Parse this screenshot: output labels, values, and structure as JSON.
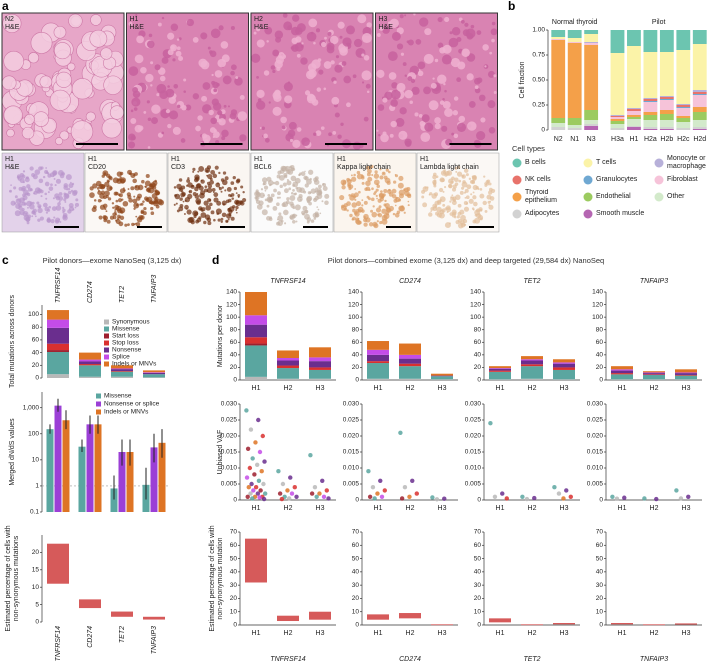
{
  "panel_labels": [
    "a",
    "b",
    "c",
    "d"
  ],
  "panel_a": {
    "top_images": [
      {
        "donor": "N2",
        "stain": "H&E"
      },
      {
        "donor": "H1",
        "stain": "H&E"
      },
      {
        "donor": "H2",
        "stain": "H&E"
      },
      {
        "donor": "H3",
        "stain": "H&E"
      }
    ],
    "bottom_images": [
      {
        "donor": "H1",
        "stain": "H&E"
      },
      {
        "donor": "H1",
        "stain": "CD20"
      },
      {
        "donor": "H1",
        "stain": "CD3"
      },
      {
        "donor": "H1",
        "stain": "BCL6"
      },
      {
        "donor": "H1",
        "stain": "Kappa light chain"
      },
      {
        "donor": "H1",
        "stain": "Lambda light chain"
      }
    ]
  },
  "chart_data": [
    {
      "type": "stacked_bar",
      "ylabel": "Cell fraction",
      "categories": [
        "N2",
        "N1",
        "N3",
        "H3a",
        "H1",
        "H2a",
        "H2b",
        "H2c",
        "H2d"
      ],
      "groups": [
        {
          "label": "Normal thyroid",
          "count": 3
        },
        {
          "label": "Pilot",
          "count": 6
        }
      ],
      "ylim": [
        0,
        1
      ],
      "yticks": [
        0,
        {
          "value": 0.25,
          "label": "0.25"
        },
        {
          "value": 0.5,
          "label": "0.50"
        },
        0.75,
        {
          "value": 1,
          "label": "1.00"
        }
      ],
      "legend_title": "Cell types",
      "series": [
        {
          "name": "B cells",
          "color": "#6cc5b0",
          "values": [
            0.07,
            0.08,
            0.04,
            0.23,
            0.16,
            0.22,
            0.22,
            0.2,
            0.14
          ]
        },
        {
          "name": "T cells",
          "color": "#fbf3a8",
          "values": [
            0.02,
            0.04,
            0.08,
            0.62,
            0.62,
            0.46,
            0.44,
            0.54,
            0.46
          ]
        },
        {
          "name": "Monocyte or macrophage",
          "color": "#b7b0d9",
          "values": [
            0,
            0,
            0.01,
            0.01,
            0.01,
            0.01,
            0.01,
            0.01,
            0.02
          ]
        },
        {
          "name": "NK cells",
          "color": "#e8736b",
          "values": [
            0,
            0,
            0,
            0.01,
            0.02,
            0.02,
            0.02,
            0.02,
            0.02
          ]
        },
        {
          "name": "Granulocytes",
          "color": "#6fa8d2",
          "values": [
            0,
            0,
            0,
            0,
            0,
            0.01,
            0.01,
            0.01,
            0.01
          ]
        },
        {
          "name": "Fibroblast",
          "color": "#f6c3d9",
          "values": [
            0.01,
            0.01,
            0.02,
            0.02,
            0.04,
            0.1,
            0.1,
            0.08,
            0.12
          ]
        },
        {
          "name": "Thyroid epithelium",
          "color": "#f4a049",
          "values": [
            0.78,
            0.75,
            0.65,
            0.02,
            0.02,
            0.03,
            0.04,
            0.02,
            0.05
          ]
        },
        {
          "name": "Endothelial",
          "color": "#9ccb60",
          "values": [
            0.05,
            0.07,
            0.1,
            0.03,
            0.02,
            0.05,
            0.06,
            0.04,
            0.08
          ]
        },
        {
          "name": "Other",
          "color": "#d3eacb",
          "values": [
            0.04,
            0.03,
            0.04,
            0.04,
            0.07,
            0.07,
            0.07,
            0.06,
            0.07
          ]
        },
        {
          "name": "Adipocytes",
          "color": "#d2d2d2",
          "values": [
            0.03,
            0.02,
            0.02,
            0.02,
            0.01,
            0.02,
            0.02,
            0.02,
            0.02
          ]
        },
        {
          "name": "Smooth muscle",
          "color": "#b566b2",
          "values": [
            0,
            0,
            0.04,
            0,
            0.03,
            0.01,
            0.01,
            0,
            0.01
          ]
        }
      ]
    },
    {
      "type": "stacked_bar",
      "title": "Pilot donors—exome NanoSeq (3,125 dx)",
      "ylabel": "Total mutations across donors",
      "categories": [
        "TNFRSF14",
        "CD274",
        "TET2",
        "TNFAIP3"
      ],
      "ylim": [
        0,
        115
      ],
      "yticks": [
        0,
        20,
        40,
        60,
        80,
        100
      ],
      "series": [
        {
          "name": "Synonymous",
          "color": "#b8b8b8",
          "values": [
            6,
            2,
            2,
            1
          ]
        },
        {
          "name": "Missense",
          "color": "#5aa6a0",
          "values": [
            35,
            18,
            8,
            5
          ]
        },
        {
          "name": "Start loss",
          "color": "#9e1f2e",
          "values": [
            3,
            0,
            0,
            0
          ]
        },
        {
          "name": "Stop loss",
          "color": "#d9302f",
          "values": [
            10,
            2,
            1,
            0
          ]
        },
        {
          "name": "Nonsense",
          "color": "#6a2e8e",
          "values": [
            25,
            4,
            3,
            2
          ]
        },
        {
          "name": "Splice",
          "color": "#c44ce8",
          "values": [
            13,
            3,
            1,
            1
          ]
        },
        {
          "name": "Indels or MNVs",
          "color": "#de7424",
          "values": [
            15,
            11,
            5,
            3
          ]
        }
      ]
    },
    {
      "type": "bar_error",
      "ylabel": "Merged dN/dS values",
      "log_scale": true,
      "ylim": [
        0.1,
        4000
      ],
      "yticks": [
        0.1,
        1,
        10,
        100,
        {
          "value": 1000,
          "label": "1,000"
        }
      ],
      "reference_line": 1,
      "series": [
        {
          "name": "Missense",
          "color": "#5aa6a0",
          "values": [
            150,
            32,
            0.8,
            1.1
          ],
          "lower": [
            100,
            20,
            0.3,
            0.3
          ],
          "upper": [
            230,
            60,
            2.5,
            5
          ]
        },
        {
          "name": "Nonsense or splice",
          "color": "#9b3fd6",
          "values": [
            1200,
            230,
            20,
            30
          ],
          "lower": [
            700,
            100,
            6,
            8
          ],
          "upper": [
            2200,
            500,
            60,
            100
          ]
        },
        {
          "name": "Indels or MNVs",
          "color": "#de7424",
          "values": [
            330,
            230,
            20,
            45
          ],
          "lower": [
            150,
            100,
            6,
            12
          ],
          "upper": [
            800,
            500,
            60,
            150
          ]
        }
      ]
    },
    {
      "type": "range_bar",
      "ylabel": [
        "Estimated percentage of cells with",
        "non-synonymous mutations"
      ],
      "categories": [
        "TNFRSF14",
        "CD274",
        "TET2",
        "TNFAIP3"
      ],
      "ylim": [
        0,
        25
      ],
      "yticks": [
        0,
        5,
        10,
        15,
        20
      ],
      "color": "#d65a5a",
      "low": [
        11,
        4,
        1.5,
        0.7
      ],
      "high": [
        22.5,
        6.5,
        3,
        1.5
      ]
    },
    {
      "type": "stacked_bar_facets",
      "title": "Pilot donors—combined exome (3,125 dx) and deep targeted (29,584 dx) NanoSeq",
      "ylabel": "Mutations per donor",
      "ylim": [
        0,
        140
      ],
      "yticks": [
        0,
        20,
        40,
        60,
        80,
        100,
        120,
        140
      ],
      "facets": [
        {
          "title": "TNFRSF14",
          "categories": [
            "H1",
            "H2",
            "H3"
          ],
          "values": [
            [
              5,
              50,
              3,
              10,
              20,
              15,
              37
            ],
            [
              2,
              17,
              0,
              4,
              8,
              4,
              12
            ],
            [
              2,
              14,
              0,
              4,
              10,
              6,
              16
            ]
          ]
        },
        {
          "title": "CD274",
          "categories": [
            "H1",
            "H2",
            "H3"
          ],
          "values": [
            [
              2,
              25,
              0,
              3,
              10,
              8,
              14
            ],
            [
              2,
              20,
              0,
              4,
              8,
              6,
              18
            ],
            [
              1,
              5,
              0,
              0,
              1,
              0,
              3
            ]
          ]
        },
        {
          "title": "TET2",
          "categories": [
            "H1",
            "H2",
            "H3"
          ],
          "values": [
            [
              1,
              12,
              0,
              2,
              3,
              1,
              3
            ],
            [
              2,
              20,
              0,
              3,
              6,
              2,
              5
            ],
            [
              1,
              15,
              0,
              4,
              6,
              2,
              5
            ]
          ]
        },
        {
          "title": "TNFAIP3",
          "categories": [
            "H1",
            "H2",
            "H3"
          ],
          "values": [
            [
              1,
              8,
              0,
              2,
              4,
              2,
              5
            ],
            [
              1,
              7,
              0,
              1,
              2,
              1,
              2
            ],
            [
              1,
              6,
              0,
              1,
              3,
              1,
              5
            ]
          ]
        }
      ]
    },
    {
      "type": "strip_facets",
      "ylabel": "Unbiased VAF",
      "ylim": [
        0,
        0.03
      ],
      "yticks": [
        0,
        0.005,
        {
          "value": 0.01,
          "label": "0.010"
        },
        0.015,
        {
          "value": 0.02,
          "label": "0.020"
        },
        0.025,
        {
          "value": 0.03,
          "label": "0.030"
        }
      ],
      "facets": [
        {
          "categories": [
            "H1",
            "H2",
            "H3"
          ],
          "values": [
            [
              0.028,
              0.025,
              0.022,
              0.02,
              0.018,
              0.016,
              0.015,
              0.013,
              0.012,
              0.011,
              0.01,
              0.009,
              0.008,
              0.007,
              0.006,
              0.005,
              0.005,
              0.004,
              0.004,
              0.003,
              0.003,
              0.002,
              0.002,
              0.002,
              0.001,
              0.001,
              0.001,
              0.0008,
              0.0005,
              0.0003
            ],
            [
              0.009,
              0.007,
              0.005,
              0.004,
              0.003,
              0.002,
              0.002,
              0.001,
              0.001,
              0.0005,
              0.0003
            ],
            [
              0.014,
              0.006,
              0.004,
              0.003,
              0.002,
              0.002,
              0.001,
              0.001,
              0.0005
            ]
          ]
        },
        {
          "categories": [
            "H1",
            "H2",
            "H3"
          ],
          "values": [
            [
              0.009,
              0.006,
              0.004,
              0.003,
              0.002,
              0.001,
              0.001,
              0.0005
            ],
            [
              0.021,
              0.006,
              0.004,
              0.002,
              0.001,
              0.0005
            ],
            [
              0.0008,
              0.0004,
              0.0002
            ]
          ]
        },
        {
          "categories": [
            "H1",
            "H2",
            "H3"
          ],
          "values": [
            [
              0.024,
              0.002,
              0.001,
              0.0005
            ],
            [
              0.001,
              0.0006,
              0.0003
            ],
            [
              0.004,
              0.003,
              0.002,
              0.001,
              0.0005
            ]
          ]
        },
        {
          "categories": [
            "H1",
            "H2",
            "H3"
          ],
          "values": [
            [
              0.001,
              0.0007,
              0.0004
            ],
            [
              0.0005,
              0.0003
            ],
            [
              0.003,
              0.001,
              0.0005
            ]
          ]
        }
      ]
    },
    {
      "type": "range_bar_facets",
      "ylabel": [
        "Estimated percentage of cells with",
        "non-synonymous mutation"
      ],
      "ylim": [
        0,
        70
      ],
      "yticks": [
        0,
        10,
        20,
        30,
        40,
        50,
        60,
        70
      ],
      "color": "#d65a5a",
      "facets": [
        {
          "title": "TNFRSF14",
          "categories": [
            "H1",
            "H2",
            "H3"
          ],
          "low": [
            32,
            3,
            4
          ],
          "high": [
            65,
            7,
            10
          ]
        },
        {
          "title": "CD274",
          "categories": [
            "H1",
            "H2",
            "H3"
          ],
          "low": [
            4,
            5,
            0
          ],
          "high": [
            8,
            9,
            0.5
          ]
        },
        {
          "title": "TET2",
          "categories": [
            "H1",
            "H2",
            "H3"
          ],
          "low": [
            2,
            0,
            0.5
          ],
          "high": [
            5,
            0.5,
            1.5
          ]
        },
        {
          "title": "TNFAIP3",
          "categories": [
            "H1",
            "H2",
            "H3"
          ],
          "low": [
            0.5,
            0,
            0.3
          ],
          "high": [
            1.5,
            0.5,
            1.2
          ]
        }
      ]
    }
  ]
}
